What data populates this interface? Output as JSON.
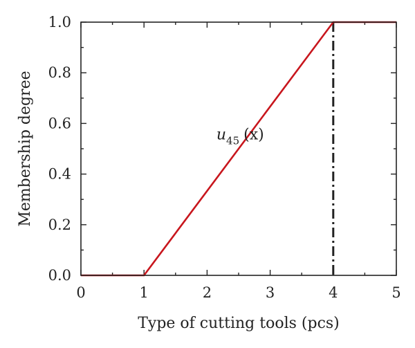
{
  "chart_data": {
    "type": "line",
    "xlabel": "Type of cutting tools (pcs)",
    "ylabel": "Membership degree",
    "xlim": [
      0,
      5
    ],
    "ylim": [
      0,
      1
    ],
    "xticks": [
      "0",
      "1",
      "2",
      "3",
      "4",
      "5"
    ],
    "yticks": [
      "0.0",
      "0.2",
      "0.4",
      "0.6",
      "0.8",
      "1.0"
    ],
    "grid": false,
    "legend": "none",
    "series": [
      {
        "x": [
          0,
          1,
          4,
          5
        ],
        "y": [
          0,
          0,
          1,
          1
        ],
        "color": "#c8161d"
      }
    ],
    "reference_lines": [
      {
        "orientation": "vertical",
        "x": 4,
        "style": "dash-dot",
        "color": "#222222"
      }
    ],
    "annotations": [
      {
        "text": "u45 (x)",
        "base": "u",
        "subscript": "45",
        "argument": "(x)",
        "x": 2.4,
        "y": 0.55
      }
    ]
  }
}
